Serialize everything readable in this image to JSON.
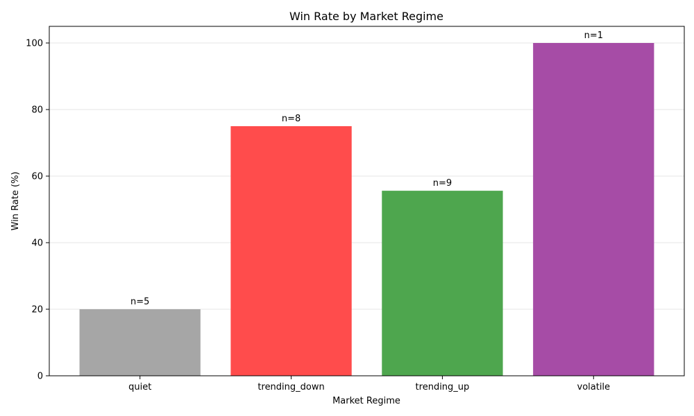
{
  "chart_data": {
    "type": "bar",
    "title": "Win Rate by Market Regime",
    "xlabel": "Market Regime",
    "ylabel": "Win Rate (%)",
    "categories": [
      "quiet",
      "trending_down",
      "trending_up",
      "volatile"
    ],
    "values": [
      20.0,
      75.0,
      55.6,
      100.0
    ],
    "data_labels": [
      "n=5",
      "n=8",
      "n=9",
      "n=1"
    ],
    "colors": [
      "#a6a6a6",
      "#ff4c4c",
      "#4ea64e",
      "#a64ca6"
    ],
    "ylim": [
      0,
      105
    ],
    "yticks": [
      0,
      20,
      40,
      60,
      80,
      100
    ],
    "grid": "y",
    "legend": "none"
  }
}
